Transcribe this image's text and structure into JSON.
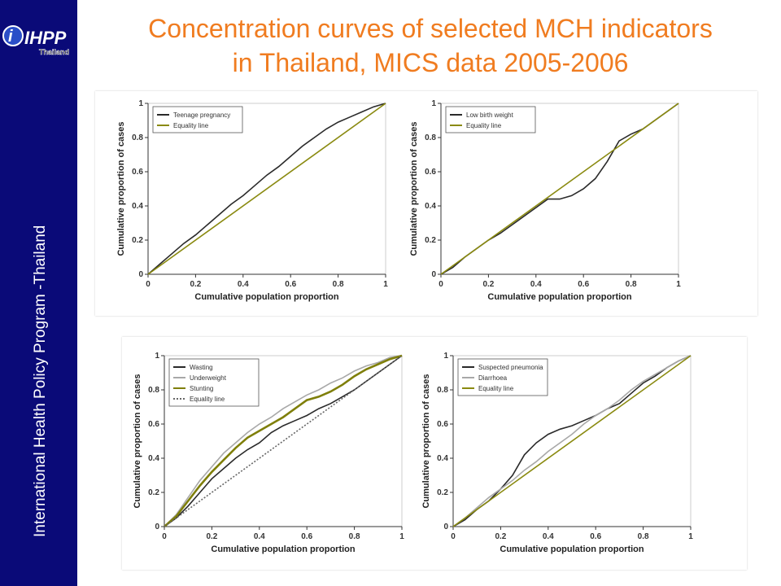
{
  "sidebar": {
    "text": "International Health Policy Program -Thailand",
    "logo_main": "IHPP",
    "logo_sub": "Thailand",
    "bg_color": "#0a0a78"
  },
  "title": {
    "line1": "Concentration curves of selected MCH indicators",
    "line2": "in Thailand, MICS data 2005-2006",
    "color": "#f07c20"
  },
  "chart_data": [
    {
      "type": "line",
      "xlabel": "Cumulative population proportion",
      "ylabel": "Cumulative proportion of cases",
      "xlim": [
        0,
        1
      ],
      "ylim": [
        0,
        1
      ],
      "xticks": [
        "0",
        "0.2",
        "0.4",
        "0.6",
        "0.8",
        "1"
      ],
      "yticks": [
        "0",
        "0.2",
        "0.4",
        "0.6",
        "0.8",
        "1"
      ],
      "legend_position": "top-left",
      "series": [
        {
          "name": "Teenage pregnancy",
          "color": "#2a2a2a",
          "x": [
            0,
            0.05,
            0.1,
            0.15,
            0.2,
            0.25,
            0.3,
            0.35,
            0.4,
            0.45,
            0.5,
            0.55,
            0.6,
            0.65,
            0.7,
            0.75,
            0.8,
            0.85,
            0.9,
            0.95,
            1
          ],
          "y": [
            0,
            0.06,
            0.12,
            0.18,
            0.23,
            0.29,
            0.35,
            0.41,
            0.46,
            0.52,
            0.58,
            0.63,
            0.69,
            0.75,
            0.8,
            0.85,
            0.89,
            0.92,
            0.95,
            0.98,
            1
          ]
        },
        {
          "name": "Equality line",
          "color": "#8a8a10",
          "x": [
            0,
            1
          ],
          "y": [
            0,
            1
          ]
        }
      ]
    },
    {
      "type": "line",
      "xlabel": "Cumulative population proportion",
      "ylabel": "Cumulative proportion of cases",
      "xlim": [
        0,
        1
      ],
      "ylim": [
        0,
        1
      ],
      "xticks": [
        "0",
        "0.2",
        "0.4",
        "0.6",
        "0.8",
        "1"
      ],
      "yticks": [
        "0",
        "0.2",
        "0.4",
        "0.6",
        "0.8",
        "1"
      ],
      "legend_position": "top-left",
      "series": [
        {
          "name": "Low birth weight",
          "color": "#2a2a2a",
          "x": [
            0,
            0.05,
            0.1,
            0.15,
            0.2,
            0.25,
            0.3,
            0.35,
            0.4,
            0.45,
            0.5,
            0.55,
            0.6,
            0.65,
            0.7,
            0.75,
            0.8,
            0.85,
            0.9,
            0.95,
            1
          ],
          "y": [
            0,
            0.04,
            0.1,
            0.15,
            0.2,
            0.24,
            0.29,
            0.34,
            0.39,
            0.44,
            0.44,
            0.46,
            0.5,
            0.56,
            0.66,
            0.78,
            0.82,
            0.85,
            0.9,
            0.95,
            1
          ]
        },
        {
          "name": "Equality line",
          "color": "#8a8a10",
          "x": [
            0,
            1
          ],
          "y": [
            0,
            1
          ]
        }
      ]
    },
    {
      "type": "line",
      "xlabel": "Cumulative population proportion",
      "ylabel": "Cumulative proportion of cases",
      "xlim": [
        0,
        1
      ],
      "ylim": [
        0,
        1
      ],
      "xticks": [
        "0",
        "0.2",
        "0.4",
        "0.6",
        "0.8",
        "1"
      ],
      "yticks": [
        "0",
        "0.2",
        "0.4",
        "0.6",
        "0.8",
        "1"
      ],
      "legend_position": "top-left",
      "series": [
        {
          "name": "Wasting",
          "color": "#2a2a2a",
          "x": [
            0,
            0.05,
            0.1,
            0.15,
            0.2,
            0.25,
            0.3,
            0.35,
            0.4,
            0.45,
            0.5,
            0.55,
            0.6,
            0.65,
            0.7,
            0.75,
            0.8,
            0.85,
            0.9,
            0.95,
            1
          ],
          "y": [
            0,
            0.05,
            0.12,
            0.2,
            0.28,
            0.34,
            0.4,
            0.45,
            0.49,
            0.55,
            0.59,
            0.62,
            0.65,
            0.69,
            0.72,
            0.76,
            0.8,
            0.85,
            0.9,
            0.95,
            1
          ]
        },
        {
          "name": "Underweight",
          "color": "#a8a8a8",
          "x": [
            0,
            0.05,
            0.1,
            0.15,
            0.2,
            0.25,
            0.3,
            0.35,
            0.4,
            0.45,
            0.5,
            0.55,
            0.6,
            0.65,
            0.7,
            0.75,
            0.8,
            0.85,
            0.9,
            0.95,
            1
          ],
          "y": [
            0,
            0.07,
            0.17,
            0.27,
            0.35,
            0.43,
            0.49,
            0.55,
            0.6,
            0.64,
            0.69,
            0.73,
            0.77,
            0.8,
            0.84,
            0.87,
            0.91,
            0.94,
            0.96,
            0.99,
            1
          ]
        },
        {
          "name": "Stunting",
          "color": "#7f7f0a",
          "x": [
            0,
            0.05,
            0.1,
            0.15,
            0.2,
            0.25,
            0.3,
            0.35,
            0.4,
            0.45,
            0.5,
            0.55,
            0.6,
            0.65,
            0.7,
            0.75,
            0.8,
            0.85,
            0.9,
            0.95,
            1
          ],
          "y": [
            0,
            0.06,
            0.15,
            0.24,
            0.32,
            0.39,
            0.46,
            0.52,
            0.56,
            0.6,
            0.64,
            0.69,
            0.74,
            0.76,
            0.79,
            0.83,
            0.88,
            0.92,
            0.95,
            0.98,
            1
          ]
        },
        {
          "name": "Equality line",
          "color": "#666666",
          "dashed": true,
          "x": [
            0,
            1
          ],
          "y": [
            0,
            1
          ]
        }
      ]
    },
    {
      "type": "line",
      "xlabel": "Cumulative population proportion",
      "ylabel": "Cumulative proportion of cases",
      "xlim": [
        0,
        1
      ],
      "ylim": [
        0,
        1
      ],
      "xticks": [
        "0",
        "0.2",
        "0.4",
        "0.6",
        "0.8",
        "1"
      ],
      "yticks": [
        "0",
        "0.2",
        "0.4",
        "0.6",
        "0.8",
        "1"
      ],
      "legend_position": "top-left",
      "series": [
        {
          "name": "Suspected pneumonia",
          "color": "#2a2a2a",
          "x": [
            0,
            0.05,
            0.1,
            0.15,
            0.2,
            0.25,
            0.3,
            0.35,
            0.4,
            0.45,
            0.5,
            0.55,
            0.6,
            0.65,
            0.7,
            0.75,
            0.8,
            0.85,
            0.9,
            0.95,
            1
          ],
          "y": [
            0,
            0.04,
            0.1,
            0.15,
            0.22,
            0.3,
            0.42,
            0.49,
            0.54,
            0.57,
            0.59,
            0.62,
            0.65,
            0.69,
            0.72,
            0.78,
            0.84,
            0.88,
            0.93,
            0.97,
            1
          ]
        },
        {
          "name": "Diarrhoea",
          "color": "#a8a8a8",
          "x": [
            0,
            0.05,
            0.1,
            0.15,
            0.2,
            0.25,
            0.3,
            0.35,
            0.4,
            0.45,
            0.5,
            0.55,
            0.6,
            0.65,
            0.7,
            0.75,
            0.8,
            0.85,
            0.9,
            0.95,
            1
          ],
          "y": [
            0,
            0.05,
            0.11,
            0.17,
            0.22,
            0.27,
            0.33,
            0.38,
            0.44,
            0.49,
            0.54,
            0.6,
            0.65,
            0.69,
            0.74,
            0.8,
            0.85,
            0.89,
            0.93,
            0.97,
            1
          ]
        },
        {
          "name": "Equality line",
          "color": "#8a8a10",
          "x": [
            0,
            1
          ],
          "y": [
            0,
            1
          ]
        }
      ]
    }
  ]
}
